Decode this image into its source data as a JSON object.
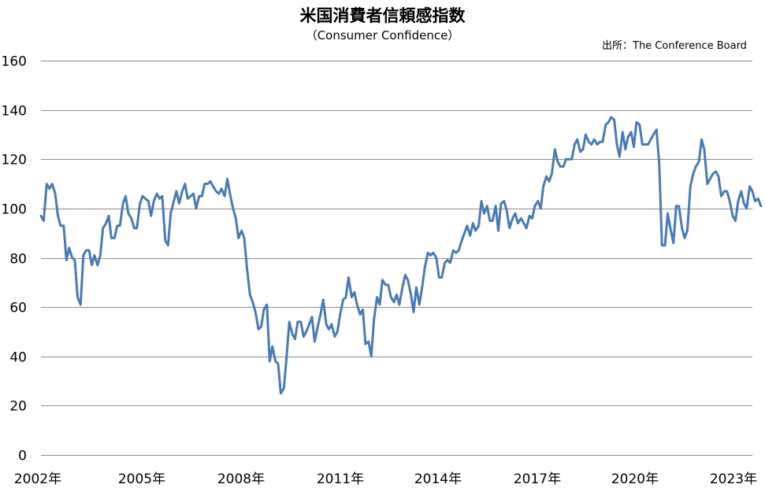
{
  "chart_data": {
    "type": "line",
    "title": "米国消費者信頼感指数",
    "subtitle": "（Consumer Confidence）",
    "source": "出所：The Conference Board",
    "xlabel": "",
    "ylabel": "",
    "ylim": [
      0,
      160
    ],
    "y_ticks": [
      0,
      20,
      40,
      60,
      80,
      100,
      120,
      140,
      160
    ],
    "x_tick_labels": [
      "2002年",
      "2005年",
      "2008年",
      "2011年",
      "2014年",
      "2017年",
      "2020年",
      "2023年"
    ],
    "xlim": [
      2002.0,
      2023.0
    ],
    "grid": true,
    "line_color": "#4a7ab5",
    "series": [
      {
        "x": [
          2002.0,
          2002.08,
          2002.17,
          2002.25,
          2002.33,
          2002.42,
          2002.5,
          2002.58,
          2002.67,
          2002.75,
          2002.83,
          2002.92,
          2003.0,
          2003.08,
          2003.17,
          2003.25,
          2003.33,
          2003.42,
          2003.5,
          2003.58,
          2003.67,
          2003.75,
          2003.83,
          2003.92,
          2004.0,
          2004.08,
          2004.17,
          2004.25,
          2004.33,
          2004.42,
          2004.5,
          2004.58,
          2004.67,
          2004.75,
          2004.83,
          2004.92,
          2005.0,
          2005.08,
          2005.17,
          2005.25,
          2005.33,
          2005.42,
          2005.5,
          2005.58,
          2005.67,
          2005.75,
          2005.83,
          2005.92,
          2006.0,
          2006.08,
          2006.17,
          2006.25,
          2006.33,
          2006.42,
          2006.5,
          2006.58,
          2006.67,
          2006.75,
          2006.83,
          2006.92,
          2007.0,
          2007.08,
          2007.17,
          2007.25,
          2007.33,
          2007.42,
          2007.5,
          2007.58,
          2007.67,
          2007.75,
          2007.83,
          2007.92,
          2008.0,
          2008.08,
          2008.17,
          2008.25,
          2008.33,
          2008.42,
          2008.5,
          2008.58,
          2008.67,
          2008.75,
          2008.83,
          2008.92,
          2009.0,
          2009.08,
          2009.17,
          2009.25,
          2009.33,
          2009.42,
          2009.5,
          2009.58,
          2009.67,
          2009.75,
          2009.83,
          2009.92,
          2010.0,
          2010.08,
          2010.17,
          2010.25,
          2010.33,
          2010.42,
          2010.5,
          2010.58,
          2010.67,
          2010.75,
          2010.83,
          2010.92,
          2011.0,
          2011.08,
          2011.17,
          2011.25,
          2011.33,
          2011.42,
          2011.5,
          2011.58,
          2011.67,
          2011.75,
          2011.83,
          2011.92,
          2012.0,
          2012.08,
          2012.17,
          2012.25,
          2012.33,
          2012.42,
          2012.5,
          2012.58,
          2012.67,
          2012.75,
          2012.83,
          2012.92,
          2013.0,
          2013.08,
          2013.17,
          2013.25,
          2013.33,
          2013.42,
          2013.5,
          2013.58,
          2013.67,
          2013.75,
          2013.83,
          2013.92,
          2014.0,
          2014.08,
          2014.17,
          2014.25,
          2014.33,
          2014.42,
          2014.5,
          2014.58,
          2014.67,
          2014.75,
          2014.83,
          2014.92,
          2015.0,
          2015.08,
          2015.17,
          2015.25,
          2015.33,
          2015.42,
          2015.5,
          2015.58,
          2015.67,
          2015.75,
          2015.83,
          2015.92,
          2016.0,
          2016.08,
          2016.17,
          2016.25,
          2016.33,
          2016.42,
          2016.5,
          2016.58,
          2016.67,
          2016.75,
          2016.83,
          2016.92,
          2017.0,
          2017.08,
          2017.17,
          2017.25,
          2017.33,
          2017.42,
          2017.5,
          2017.58,
          2017.67,
          2017.75,
          2017.83,
          2017.92,
          2018.0,
          2018.08,
          2018.17,
          2018.25,
          2018.33,
          2018.42,
          2018.5,
          2018.58,
          2018.67,
          2018.75,
          2018.83,
          2018.92,
          2019.0,
          2019.08,
          2019.17,
          2019.25,
          2019.33,
          2019.42,
          2019.5,
          2019.58,
          2019.67,
          2019.75,
          2019.83,
          2019.92,
          2020.0,
          2020.08,
          2020.17,
          2020.25,
          2020.33,
          2020.42,
          2020.5,
          2020.58,
          2020.67,
          2020.75,
          2020.83,
          2020.92,
          2021.0,
          2021.08,
          2021.17,
          2021.25,
          2021.33,
          2021.42,
          2021.5,
          2021.58,
          2021.67,
          2021.75,
          2021.83,
          2021.92,
          2022.0,
          2022.08,
          2022.17,
          2022.25,
          2022.33,
          2022.42,
          2022.5,
          2022.58,
          2022.67,
          2022.75,
          2022.83,
          2022.92,
          2023.0,
          2023.08,
          2023.17,
          2023.25
        ],
        "values": [
          97,
          95,
          110,
          108,
          110,
          106,
          97,
          93,
          93,
          79,
          84,
          80,
          79,
          64,
          61,
          81,
          83,
          83,
          77,
          81,
          77,
          81,
          92,
          94,
          97,
          88,
          88,
          93,
          93,
          102,
          105,
          98,
          96,
          92,
          92,
          102,
          105,
          104,
          103,
          97,
          103,
          106,
          104,
          105,
          87,
          85,
          98,
          103,
          107,
          102,
          107,
          110,
          104,
          105,
          106,
          100,
          105,
          105,
          110,
          110,
          111,
          109,
          107,
          106,
          108,
          105,
          112,
          106,
          100,
          96,
          88,
          91,
          88,
          76,
          65,
          62,
          58,
          51,
          52,
          59,
          61,
          38,
          44,
          38,
          37,
          25,
          27,
          40,
          54,
          49,
          47,
          54,
          54,
          48,
          50,
          53,
          56,
          46,
          52,
          57,
          63,
          53,
          51,
          53,
          48,
          50,
          57,
          63,
          64,
          72,
          64,
          66,
          61,
          57,
          59,
          45,
          46,
          40,
          55,
          64,
          61,
          71,
          69,
          69,
          64,
          62,
          65,
          61,
          68,
          73,
          71,
          65,
          58,
          68,
          61,
          68,
          76,
          82,
          81,
          82,
          80,
          72,
          72,
          78,
          79,
          78,
          83,
          82,
          83,
          87,
          90,
          93,
          89,
          94,
          91,
          93,
          103,
          98,
          101,
          95,
          95,
          101,
          91,
          102,
          103,
          99,
          92,
          96,
          98,
          94,
          96,
          94,
          92,
          97,
          96,
          101,
          103,
          100,
          109,
          113,
          111,
          114,
          124,
          119,
          117,
          117,
          120,
          120,
          120,
          126,
          128,
          123,
          124,
          130,
          127,
          126,
          128,
          126,
          127,
          127,
          134,
          135,
          137,
          136,
          126,
          121,
          131,
          124,
          129,
          131,
          125,
          135,
          134,
          126,
          126,
          126,
          128,
          130,
          132,
          118,
          85,
          85,
          98,
          92,
          86,
          101,
          101,
          92,
          88,
          91,
          109,
          114,
          117,
          119,
          128,
          124,
          110,
          112,
          114,
          115,
          113,
          105,
          107,
          107,
          103,
          97,
          95,
          103,
          107,
          102,
          100,
          109,
          107,
          103,
          104,
          101
        ]
      }
    ]
  }
}
